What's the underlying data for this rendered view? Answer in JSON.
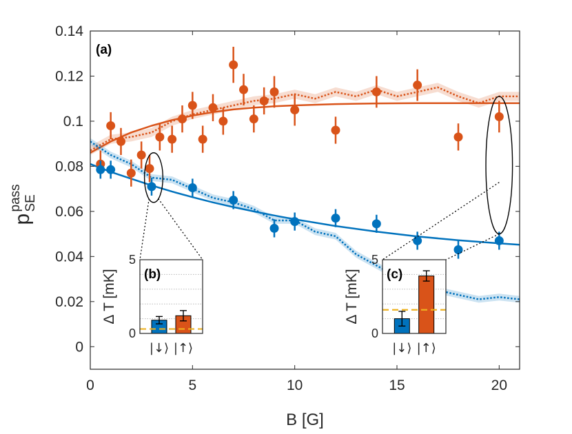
{
  "chart_data": {
    "type": "scatter",
    "panel_label": "(a)",
    "xlabel": "B [G]",
    "ylabel_main": "p",
    "ylabel_sup": "pass",
    "ylabel_sub": "SE",
    "xlim": [
      0,
      21
    ],
    "ylim": [
      -0.01,
      0.14
    ],
    "xticks": [
      0,
      5,
      10,
      15,
      20
    ],
    "yticks": [
      0,
      0.02,
      0.04,
      0.06,
      0.08,
      0.1,
      0.12,
      0.14
    ],
    "ytick_labels": [
      "0",
      "0.02",
      "0.04",
      "0.06",
      "0.08",
      "0.1",
      "0.12",
      "0.14"
    ],
    "xtick_labels": [
      "0",
      "5",
      "10",
      "15",
      "20"
    ],
    "series": [
      {
        "name": "spin up",
        "color": "#D95319",
        "x": [
          0.5,
          1.0,
          1.5,
          2.0,
          2.5,
          2.9,
          3.4,
          4.0,
          4.5,
          5.0,
          5.5,
          6.0,
          6.5,
          7.0,
          7.5,
          8.0,
          8.5,
          9.0,
          10.0,
          12.0,
          14.0,
          16.0,
          18.0,
          20.0
        ],
        "y": [
          0.081,
          0.098,
          0.091,
          0.077,
          0.085,
          0.079,
          0.093,
          0.092,
          0.101,
          0.107,
          0.092,
          0.106,
          0.1,
          0.125,
          0.114,
          0.101,
          0.109,
          0.113,
          0.105,
          0.096,
          0.113,
          0.116,
          0.093,
          0.102
        ],
        "err": [
          0.006,
          0.006,
          0.006,
          0.006,
          0.006,
          0.006,
          0.006,
          0.006,
          0.006,
          0.006,
          0.006,
          0.006,
          0.006,
          0.008,
          0.007,
          0.006,
          0.006,
          0.007,
          0.007,
          0.006,
          0.007,
          0.007,
          0.006,
          0.007
        ],
        "fit_curve": {
          "x": [
            0,
            1,
            2,
            3,
            4,
            5,
            6,
            7,
            8,
            9,
            10,
            12,
            14,
            16,
            18,
            20,
            21
          ],
          "y": [
            0.086,
            0.091,
            0.095,
            0.098,
            0.1005,
            0.1025,
            0.104,
            0.1052,
            0.106,
            0.1066,
            0.107,
            0.1076,
            0.1079,
            0.108,
            0.108,
            0.108,
            0.108
          ]
        },
        "simulation_band": {
          "x": [
            0,
            1,
            2,
            3,
            4,
            5,
            6,
            7,
            8,
            9,
            10,
            11,
            12,
            13,
            14,
            15,
            16,
            17,
            18,
            19,
            20,
            21
          ],
          "y": [
            0.087,
            0.092,
            0.093,
            0.095,
            0.1,
            0.103,
            0.105,
            0.107,
            0.109,
            0.11,
            0.112,
            0.11,
            0.113,
            0.111,
            0.114,
            0.111,
            0.113,
            0.115,
            0.111,
            0.108,
            0.111,
            0.111
          ],
          "halfwidth": 0.002
        }
      },
      {
        "name": "spin down",
        "color": "#0072BD",
        "x": [
          0.5,
          1.0,
          3.0,
          5.0,
          7.0,
          9.0,
          10.0,
          12.0,
          14.0,
          16.0,
          18.0,
          20.0
        ],
        "y": [
          0.0785,
          0.0785,
          0.071,
          0.0705,
          0.065,
          0.0525,
          0.0555,
          0.057,
          0.0545,
          0.047,
          0.043,
          0.047
        ],
        "err": [
          0.004,
          0.004,
          0.004,
          0.004,
          0.004,
          0.004,
          0.004,
          0.004,
          0.004,
          0.004,
          0.004,
          0.004
        ],
        "fit_curve": {
          "x": [
            0,
            1,
            2,
            3,
            4,
            5,
            6,
            7,
            8,
            9,
            10,
            12,
            14,
            16,
            18,
            20,
            21
          ],
          "y": [
            0.081,
            0.0775,
            0.0745,
            0.0715,
            0.0688,
            0.0663,
            0.064,
            0.0619,
            0.06,
            0.0582,
            0.0565,
            0.0535,
            0.051,
            0.0489,
            0.0472,
            0.0458,
            0.0452
          ]
        },
        "simulation_band": {
          "x": [
            0,
            1,
            2,
            3,
            4,
            5,
            6,
            7,
            8,
            9,
            10,
            11,
            12,
            12.5,
            13,
            14,
            15,
            16,
            17,
            18,
            19,
            20,
            21
          ],
          "y": [
            0.091,
            0.085,
            0.081,
            0.075,
            0.074,
            0.07,
            0.066,
            0.064,
            0.061,
            0.056,
            0.056,
            0.051,
            0.049,
            0.045,
            0.041,
            0.036,
            0.031,
            0.028,
            0.025,
            0.023,
            0.021,
            0.022,
            0.021
          ],
          "halfwidth": 0.0015
        }
      }
    ],
    "highlights": [
      {
        "x": 3.1,
        "y": 0.075,
        "rx": 0.45,
        "ry": 0.011,
        "inset": "b"
      },
      {
        "x": 20.0,
        "y": 0.0805,
        "rx": 0.65,
        "ry": 0.0305,
        "inset": "c"
      }
    ],
    "insets": [
      {
        "label": "(b)",
        "ylabel": "Δ T [mK]",
        "ylim": [
          0,
          5
        ],
        "ytick_labels": [
          "0",
          "5"
        ],
        "categories": [
          "|↓⟩",
          "|↑⟩"
        ],
        "values": [
          0.9,
          1.2
        ],
        "errors": [
          0.25,
          0.35
        ],
        "reference_line": 0.3,
        "grid": [
          1,
          2,
          3,
          4
        ]
      },
      {
        "label": "(c)",
        "ylabel": "Δ T [mK]",
        "ylim": [
          0,
          5
        ],
        "ytick_labels": [
          "0",
          "5"
        ],
        "categories": [
          "|↓⟩",
          "|↑⟩"
        ],
        "values": [
          1.0,
          3.9
        ],
        "errors": [
          0.5,
          0.35
        ],
        "reference_line": 1.6,
        "grid": [
          1,
          2,
          3,
          4
        ]
      }
    ]
  }
}
